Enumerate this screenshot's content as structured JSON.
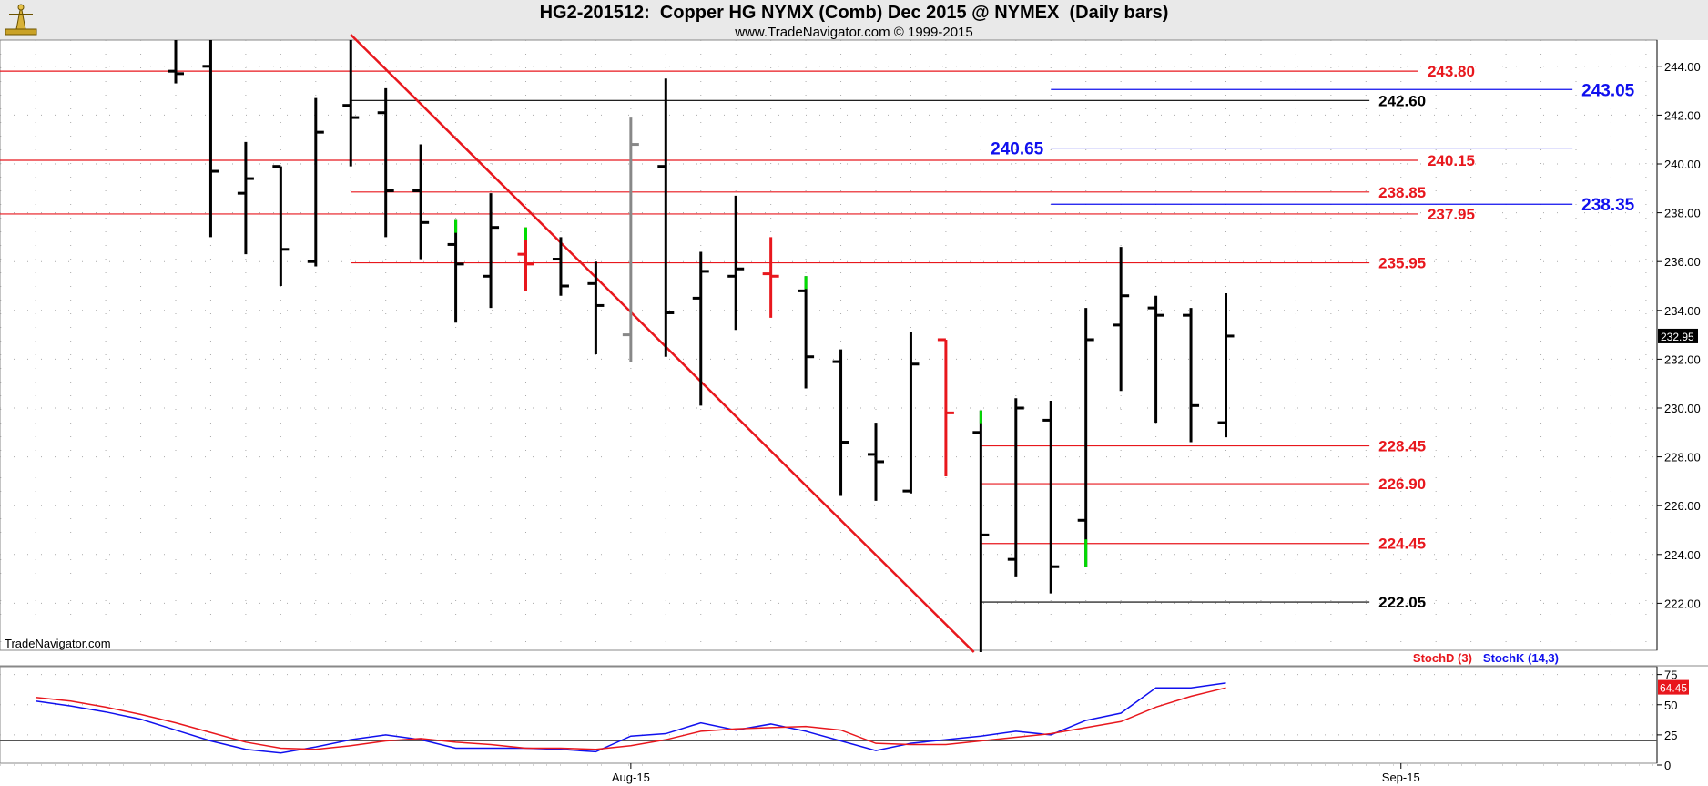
{
  "header": {
    "title": "HG2-201512:  Copper HG NYMX (Comb) Dec 2015 @ NYMEX  (Daily bars)",
    "subtitle": "www.TradeNavigator.com © 1999-2015",
    "watermark": "TradeNavigator.com"
  },
  "colors": {
    "up": "#000000",
    "down": "#000000",
    "red": "#e8171d",
    "blue": "#1010ee",
    "green": "#00dd00",
    "gray": "#888888",
    "grid": "#aaaaaa"
  },
  "chart_data": [
    {
      "type": "ohlc",
      "title": "",
      "y_axis": {
        "min": 220,
        "max": 245,
        "ticks": [
          "222.00",
          "224.00",
          "226.00",
          "228.00",
          "230.00",
          "232.00",
          "234.00",
          "236.00",
          "238.00",
          "240.00",
          "242.00",
          "244.00"
        ]
      },
      "x_axis": {
        "labels": [
          {
            "text": "Aug-15",
            "at": 13
          },
          {
            "text": "Sep-15",
            "at": 35
          }
        ]
      },
      "last_price": "232.95",
      "bars": [
        {
          "i": 0,
          "open": 243.8,
          "high": 245.5,
          "low": 243.3,
          "close": 243.7,
          "color": "black"
        },
        {
          "i": 1,
          "open": 244.0,
          "high": 245.5,
          "low": 237.0,
          "close": 239.7,
          "color": "black"
        },
        {
          "i": 2,
          "open": 238.8,
          "high": 240.9,
          "low": 236.3,
          "close": 239.4,
          "color": "black"
        },
        {
          "i": 3,
          "open": 239.9,
          "high": 239.9,
          "low": 235.0,
          "close": 236.5,
          "color": "black"
        },
        {
          "i": 4,
          "open": 236.0,
          "high": 242.7,
          "low": 235.8,
          "close": 241.3,
          "color": "black"
        },
        {
          "i": 5,
          "open": 242.4,
          "high": 245.5,
          "low": 239.9,
          "close": 241.9,
          "color": "black"
        },
        {
          "i": 6,
          "open": 242.1,
          "high": 243.1,
          "low": 237.0,
          "close": 238.9,
          "color": "black"
        },
        {
          "i": 7,
          "open": 238.9,
          "high": 240.8,
          "low": 236.1,
          "close": 237.6,
          "color": "black"
        },
        {
          "i": 8,
          "open": 236.7,
          "high": 237.7,
          "low": 233.5,
          "close": 235.9,
          "color": "black",
          "high_color": "green"
        },
        {
          "i": 9,
          "open": 235.4,
          "high": 238.8,
          "low": 234.1,
          "close": 237.4,
          "color": "black"
        },
        {
          "i": 10,
          "open": 236.3,
          "high": 237.4,
          "low": 234.8,
          "close": 235.9,
          "color": "red",
          "high_color": "green"
        },
        {
          "i": 11,
          "open": 236.1,
          "high": 237.0,
          "low": 234.6,
          "close": 235.0,
          "color": "black"
        },
        {
          "i": 12,
          "open": 235.1,
          "high": 236.0,
          "low": 232.2,
          "close": 234.2,
          "color": "black"
        },
        {
          "i": 13,
          "open": 233.0,
          "high": 241.9,
          "low": 231.9,
          "close": 240.8,
          "color": "gray"
        },
        {
          "i": 14,
          "open": 239.9,
          "high": 243.5,
          "low": 232.1,
          "close": 233.9,
          "color": "black"
        },
        {
          "i": 15,
          "open": 234.5,
          "high": 236.4,
          "low": 230.1,
          "close": 235.6,
          "color": "black"
        },
        {
          "i": 16,
          "open": 235.4,
          "high": 238.7,
          "low": 233.2,
          "close": 235.7,
          "color": "black"
        },
        {
          "i": 17,
          "open": 235.5,
          "high": 237.0,
          "low": 233.7,
          "close": 235.4,
          "color": "red"
        },
        {
          "i": 18,
          "open": 234.8,
          "high": 235.4,
          "low": 230.8,
          "close": 232.1,
          "color": "black",
          "high_color": "green"
        },
        {
          "i": 19,
          "open": 231.9,
          "high": 232.4,
          "low": 226.4,
          "close": 228.6,
          "color": "black"
        },
        {
          "i": 20,
          "open": 228.1,
          "high": 229.4,
          "low": 226.2,
          "close": 227.8,
          "color": "black"
        },
        {
          "i": 21,
          "open": 226.6,
          "high": 233.1,
          "low": 226.5,
          "close": 231.8,
          "color": "black"
        },
        {
          "i": 22,
          "open": 232.8,
          "high": 232.8,
          "low": 227.2,
          "close": 229.8,
          "color": "red"
        },
        {
          "i": 23,
          "open": 229.0,
          "high": 229.9,
          "low": 219.8,
          "close": 224.8,
          "color": "black",
          "high_color": "green"
        },
        {
          "i": 24,
          "open": 223.8,
          "high": 230.4,
          "low": 223.1,
          "close": 230.0,
          "color": "black"
        },
        {
          "i": 25,
          "open": 229.5,
          "high": 230.3,
          "low": 222.4,
          "close": 223.5,
          "color": "black"
        },
        {
          "i": 26,
          "open": 225.4,
          "high": 234.1,
          "low": 223.5,
          "close": 232.8,
          "color": "black",
          "low_color": "green"
        },
        {
          "i": 27,
          "open": 233.4,
          "high": 236.6,
          "low": 230.7,
          "close": 234.6,
          "color": "black"
        },
        {
          "i": 28,
          "open": 234.1,
          "high": 234.6,
          "low": 229.4,
          "close": 233.8,
          "color": "black"
        },
        {
          "i": 29,
          "open": 233.8,
          "high": 234.1,
          "low": 228.6,
          "close": 230.1,
          "color": "black"
        },
        {
          "i": 30,
          "open": 229.4,
          "high": 234.7,
          "low": 228.8,
          "close": 232.95,
          "color": "black"
        }
      ],
      "levels": [
        {
          "label": "243.80",
          "value": 243.8,
          "color": "red",
          "x_start": -5.1,
          "x_end": 35.5,
          "label_side": "right"
        },
        {
          "label": "243.05",
          "value": 243.05,
          "color": "blue",
          "x_start": 25.0,
          "x_end": 39.9,
          "label_side": "right"
        },
        {
          "label": "242.60",
          "value": 242.6,
          "color": "black",
          "x_start": 5.0,
          "x_end": 34.1,
          "label_side": "right"
        },
        {
          "label": "240.65",
          "value": 240.65,
          "color": "blue",
          "x_start": 25.0,
          "x_end": 39.9,
          "label_side": "left"
        },
        {
          "label": "240.15",
          "value": 240.15,
          "color": "red",
          "x_start": -5.1,
          "x_end": 35.5,
          "label_side": "right"
        },
        {
          "label": "238.85",
          "value": 238.85,
          "color": "red",
          "x_start": 5.0,
          "x_end": 34.1,
          "label_side": "right"
        },
        {
          "label": "238.35",
          "value": 238.35,
          "color": "blue",
          "x_start": 25.0,
          "x_end": 39.9,
          "label_side": "right"
        },
        {
          "label": "237.95",
          "value": 237.95,
          "color": "red",
          "x_start": -5.1,
          "x_end": 35.5,
          "label_side": "right"
        },
        {
          "label": "235.95",
          "value": 235.95,
          "color": "red",
          "x_start": 5.0,
          "x_end": 34.1,
          "label_side": "right"
        },
        {
          "label": "228.45",
          "value": 228.45,
          "color": "red",
          "x_start": 23.0,
          "x_end": 34.1,
          "label_side": "right"
        },
        {
          "label": "226.90",
          "value": 226.9,
          "color": "red",
          "x_start": 23.0,
          "x_end": 34.1,
          "label_side": "right"
        },
        {
          "label": "224.45",
          "value": 224.45,
          "color": "red",
          "x_start": 23.0,
          "x_end": 34.1,
          "label_side": "right"
        },
        {
          "label": "222.05",
          "value": 222.05,
          "color": "black",
          "x_start": 23.0,
          "x_end": 34.1,
          "label_side": "right"
        }
      ],
      "trendline": {
        "color": "red",
        "x1": 5.0,
        "y1": 245.3,
        "x2": 22.8,
        "y2": 220.0
      }
    },
    {
      "type": "line",
      "title": "",
      "legend": [
        {
          "text": "StochD (3)",
          "color": "red"
        },
        {
          "text": "StochK (14,3)",
          "color": "blue"
        }
      ],
      "y_axis": {
        "min": 0,
        "max": 80,
        "ticks": [
          "0",
          "25",
          "50",
          "75"
        ]
      },
      "reference_line": 20,
      "last_value": "64.45",
      "series": [
        {
          "name": "StochK (14,3)",
          "color": "blue",
          "x_start": -4,
          "values": [
            53,
            49,
            44,
            38,
            29,
            20,
            13,
            10,
            15,
            21,
            25,
            21,
            14,
            14,
            14,
            13,
            11,
            24,
            26,
            35,
            29,
            34,
            28,
            20,
            12,
            18,
            21,
            24,
            28,
            25,
            37,
            43,
            64,
            64,
            68
          ]
        },
        {
          "name": "StochD (3)",
          "color": "red",
          "x_start": -4,
          "values": [
            56,
            53,
            48,
            42,
            35,
            27,
            19,
            14,
            13,
            16,
            20,
            22,
            19,
            17,
            14,
            14,
            13,
            16,
            21,
            28,
            30,
            31,
            32,
            29,
            18,
            17,
            17,
            20,
            23,
            26,
            31,
            36,
            48,
            57,
            64
          ]
        }
      ]
    }
  ]
}
